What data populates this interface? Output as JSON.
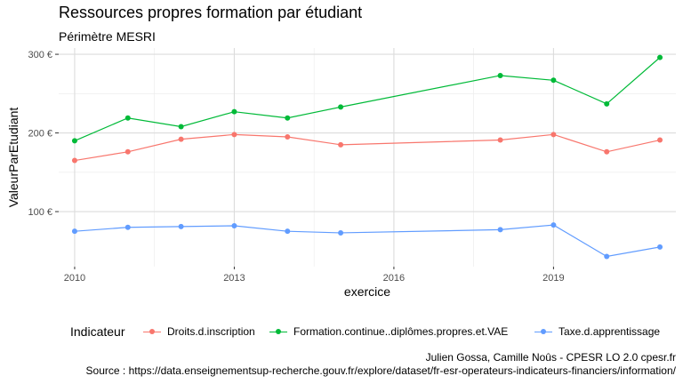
{
  "header": {
    "title": "Ressources propres formation par étudiant",
    "subtitle": "Périmètre MESRI"
  },
  "chart_data": {
    "type": "line",
    "xlabel": "exercice",
    "ylabel": "ValeurParEtudiant",
    "xticks": [
      2010,
      2013,
      2016,
      2019
    ],
    "yticks": [
      100,
      200,
      300
    ],
    "ytick_labels": [
      "100 €",
      "200 €",
      "300 €"
    ],
    "xlim": [
      2009.7,
      2021.3
    ],
    "ylim": [
      30,
      308
    ],
    "grid": true,
    "legend_position": "bottom",
    "series": [
      {
        "name": "Droits.d.inscription",
        "color": "#F8766D",
        "x": [
          2010,
          2011,
          2012,
          2013,
          2014,
          2015,
          2018,
          2019,
          2020,
          2021
        ],
        "values": [
          165,
          176,
          192,
          198,
          195,
          185,
          191,
          198,
          176,
          191
        ]
      },
      {
        "name": "Formation.continue..diplômes.propres.et.VAE",
        "color": "#00BA38",
        "x": [
          2010,
          2011,
          2012,
          2013,
          2014,
          2015,
          2018,
          2019,
          2020,
          2021
        ],
        "values": [
          190,
          219,
          208,
          227,
          219,
          233,
          273,
          267,
          237,
          296
        ]
      },
      {
        "name": "Taxe.d.apprentissage",
        "color": "#619CFF",
        "x": [
          2010,
          2011,
          2012,
          2013,
          2014,
          2015,
          2018,
          2019,
          2020,
          2021
        ],
        "values": [
          75,
          80,
          81,
          82,
          75,
          73,
          77,
          83,
          43,
          55
        ]
      }
    ]
  },
  "legend": {
    "title": "Indicateur"
  },
  "caption": {
    "line1": "Julien Gossa, Camille Noûs - CPESR LO 2.0 cpesr.fr",
    "line2": "Source : https://data.enseignementsup-recherche.gouv.fr/explore/dataset/fr-esr-operateurs-indicateurs-financiers/information/"
  }
}
